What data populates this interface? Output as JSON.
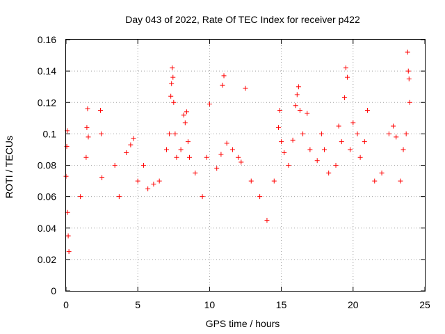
{
  "chart_data": {
    "type": "scatter",
    "title": "Day 043 of 2022, Rate Of TEC Index for receiver p422",
    "xlabel": "GPS time / hours",
    "ylabel": "ROTI / TECUs",
    "xlim": [
      0,
      25
    ],
    "ylim": [
      0,
      0.16
    ],
    "xticks": [
      "0",
      "5",
      "10",
      "15",
      "20",
      "25"
    ],
    "yticks": [
      "0",
      "0.02",
      "0.04",
      "0.06",
      "0.08",
      "0.1",
      "0.12",
      "0.14",
      "0.16"
    ],
    "grid": true,
    "marker": "plus",
    "color": "#ff0000",
    "series": [
      {
        "x": [
          0.0,
          0.05,
          0.08,
          0.1,
          0.15,
          0.2,
          1.0,
          1.4,
          1.45,
          1.5,
          1.55,
          2.4,
          2.45,
          2.5,
          3.4,
          3.7,
          4.2,
          4.5,
          4.7,
          5.0,
          5.4,
          5.7,
          6.1,
          6.5,
          7.0,
          7.2,
          7.3,
          7.35,
          7.4,
          7.45,
          7.5,
          7.6,
          7.7,
          8.0,
          8.2,
          8.3,
          8.4,
          8.5,
          8.6,
          9.0,
          9.5,
          9.8,
          10.0,
          10.5,
          10.8,
          10.9,
          11.0,
          11.2,
          11.6,
          12.0,
          12.2,
          12.5,
          12.9,
          13.5,
          14.0,
          14.5,
          14.8,
          14.9,
          15.0,
          15.2,
          15.5,
          15.8,
          16.0,
          16.1,
          16.2,
          16.3,
          16.5,
          16.8,
          17.0,
          17.5,
          17.8,
          18.0,
          18.3,
          18.8,
          19.0,
          19.2,
          19.4,
          19.5,
          19.6,
          19.8,
          20.0,
          20.3,
          20.5,
          20.8,
          21.0,
          21.5,
          22.0,
          22.5,
          22.8,
          23.0,
          23.3,
          23.5,
          23.7,
          23.8,
          23.85,
          23.9,
          23.95
        ],
        "y": [
          0.073,
          0.092,
          0.102,
          0.05,
          0.035,
          0.025,
          0.06,
          0.085,
          0.104,
          0.116,
          0.098,
          0.115,
          0.1,
          0.072,
          0.08,
          0.06,
          0.088,
          0.093,
          0.097,
          0.07,
          0.08,
          0.065,
          0.068,
          0.07,
          0.09,
          0.1,
          0.124,
          0.132,
          0.142,
          0.136,
          0.12,
          0.1,
          0.085,
          0.09,
          0.112,
          0.107,
          0.114,
          0.095,
          0.085,
          0.075,
          0.06,
          0.085,
          0.119,
          0.078,
          0.087,
          0.131,
          0.137,
          0.094,
          0.09,
          0.085,
          0.082,
          0.129,
          0.07,
          0.06,
          0.045,
          0.07,
          0.104,
          0.115,
          0.095,
          0.088,
          0.08,
          0.096,
          0.118,
          0.125,
          0.13,
          0.115,
          0.1,
          0.113,
          0.09,
          0.083,
          0.1,
          0.09,
          0.075,
          0.08,
          0.105,
          0.095,
          0.123,
          0.142,
          0.136,
          0.09,
          0.107,
          0.1,
          0.085,
          0.095,
          0.115,
          0.07,
          0.075,
          0.1,
          0.105,
          0.098,
          0.07,
          0.09,
          0.1,
          0.152,
          0.14,
          0.135,
          0.12
        ]
      }
    ]
  }
}
